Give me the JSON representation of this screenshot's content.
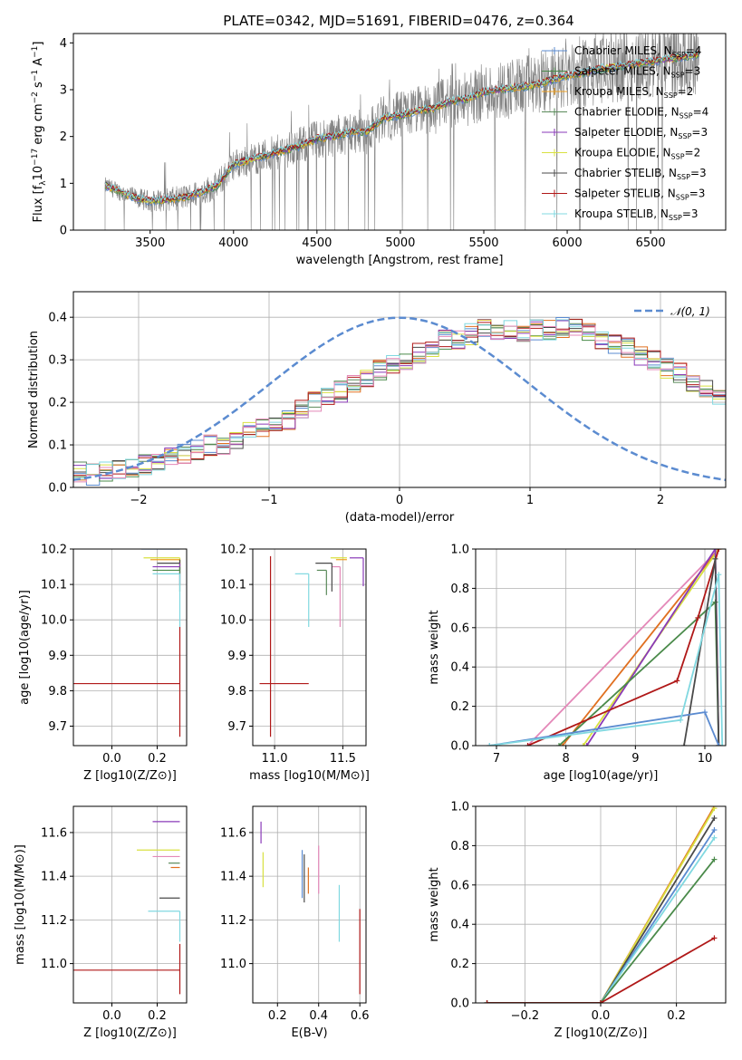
{
  "chart_data": [
    {
      "id": "spectrum",
      "type": "line",
      "title": "PLATE=0342, MJD=51691, FIBERID=0476, z=0.364",
      "xlabel": "wavelength [Angstrom, rest frame]",
      "ylabel": "Flux [f_λ 10^-17 erg cm^-2 s^-1 A^-1]",
      "xlim": [
        3040,
        6950
      ],
      "ylim": [
        0,
        4.2
      ],
      "xticks": [
        "3500",
        "4000",
        "4500",
        "5000",
        "5500",
        "6000",
        "6500"
      ],
      "yticks": [
        "0",
        "1",
        "2",
        "3",
        "4"
      ],
      "grid": false,
      "legend_position": "upper right",
      "data_color": "#808080",
      "series": [
        {
          "name": "Chabrier MILES, N_SSP=4",
          "color": "#5b8bd0"
        },
        {
          "name": "Salpeter MILES, N_SSP=3",
          "color": "#4a8a4a"
        },
        {
          "name": "Kroupa MILES, N_SSP=2",
          "color": "#f0a020"
        },
        {
          "name": "Chabrier ELODIE, N_SSP=4",
          "color": "#5a8a5a"
        },
        {
          "name": "Salpeter ELODIE, N_SSP=3",
          "color": "#8a3ab8"
        },
        {
          "name": "Kroupa ELODIE, N_SSP=2",
          "color": "#d8e040"
        },
        {
          "name": "Chabrier STELIB, N_SSP=3",
          "color": "#4a4a4a"
        },
        {
          "name": "Salpeter STELIB, N_SSP=3",
          "color": "#b01818"
        },
        {
          "name": "Kroupa STELIB, N_SSP=3",
          "color": "#80d8e0"
        }
      ],
      "model_points": {
        "x": [
          3230,
          3300,
          3400,
          3500,
          3600,
          3700,
          3800,
          3900,
          4000,
          4100,
          4200,
          4300,
          4400,
          4500,
          4600,
          4700,
          4800,
          4900,
          5000,
          5100,
          5200,
          5300,
          5400,
          5500,
          5600,
          5700,
          5800,
          5900,
          6000,
          6100,
          6200,
          6300,
          6400,
          6500,
          6600,
          6700,
          6790
        ],
        "y": [
          0.95,
          0.85,
          0.7,
          0.62,
          0.65,
          0.7,
          0.8,
          0.95,
          1.4,
          1.5,
          1.6,
          1.7,
          1.8,
          1.95,
          2.0,
          2.1,
          2.1,
          2.4,
          2.45,
          2.55,
          2.6,
          2.75,
          2.8,
          2.95,
          3.0,
          3.05,
          3.1,
          3.2,
          3.3,
          3.35,
          3.45,
          3.5,
          3.55,
          3.6,
          3.65,
          3.7,
          3.75
        ]
      }
    },
    {
      "id": "residuals",
      "type": "step",
      "xlabel": "(data-model)/error",
      "ylabel": "Normed distribution",
      "xlim": [
        -2.5,
        2.5
      ],
      "ylim": [
        0,
        0.46
      ],
      "xticks": [
        "−2",
        "−1",
        "0",
        "1",
        "2"
      ],
      "yticks": [
        "0.0",
        "0.1",
        "0.2",
        "0.3",
        "0.4"
      ],
      "grid": true,
      "legend": "𝒩(0, 1)",
      "legend_position": "upper right",
      "gaussian_color": "#5b8bd0",
      "bin_width": 0.1,
      "bin_start": -2.5,
      "base_histogram": [
        0.035,
        0.03,
        0.035,
        0.045,
        0.05,
        0.055,
        0.06,
        0.07,
        0.08,
        0.09,
        0.1,
        0.1,
        0.115,
        0.13,
        0.14,
        0.15,
        0.16,
        0.18,
        0.2,
        0.215,
        0.225,
        0.24,
        0.255,
        0.275,
        0.285,
        0.3,
        0.315,
        0.33,
        0.345,
        0.35,
        0.36,
        0.37,
        0.365,
        0.37,
        0.36,
        0.37,
        0.37,
        0.375,
        0.38,
        0.37,
        0.35,
        0.34,
        0.33,
        0.31,
        0.3,
        0.28,
        0.27,
        0.25,
        0.23,
        0.21,
        0.2,
        0.18,
        0.165,
        0.15,
        0.14,
        0.125,
        0.11,
        0.1,
        0.09,
        0.08,
        0.07,
        0.06,
        0.055,
        0.05,
        0.045,
        0.04,
        0.035,
        0.03,
        0.03,
        0.025
      ]
    },
    {
      "id": "age-vs-z",
      "type": "errorbar",
      "xlabel": "Z [log10(Z/Z⊙)]",
      "ylabel": "age  [log10(age/yr)]",
      "xlim": [
        -0.17,
        0.33
      ],
      "ylim": [
        9.645,
        10.2
      ],
      "xticks": [
        "0.0",
        "0.2"
      ],
      "yticks": [
        "9.7",
        "9.8",
        "9.9",
        "10.0",
        "10.1",
        "10.2"
      ],
      "grid": true,
      "points": [
        {
          "x": 0.3,
          "y": 10.2,
          "xerr": [
            0.17,
            0.0
          ],
          "yerr": [
            0.0,
            0.0
          ],
          "color": "#5b8bd0"
        },
        {
          "x": 0.3,
          "y": 10.175,
          "xerr": [
            0.16,
            0.0
          ],
          "yerr": [
            0.02,
            0.0
          ],
          "color": "#d8e040"
        },
        {
          "x": 0.3,
          "y": 10.17,
          "xerr": [
            0.13,
            0.0
          ],
          "yerr": [
            0.03,
            0.0
          ],
          "color": "#f0a020"
        },
        {
          "x": 0.3,
          "y": 10.16,
          "xerr": [
            0.1,
            0.0
          ],
          "yerr": [
            0.03,
            0.01
          ],
          "color": "#4a4a4a"
        },
        {
          "x": 0.3,
          "y": 10.15,
          "xerr": [
            0.12,
            0.0
          ],
          "yerr": [
            0.05,
            0.01
          ],
          "color": "#8a3ab8"
        },
        {
          "x": 0.3,
          "y": 10.14,
          "xerr": [
            0.12,
            0.0
          ],
          "yerr": [
            0.06,
            0.01
          ],
          "color": "#4a8a4a"
        },
        {
          "x": 0.3,
          "y": 10.13,
          "xerr": [
            0.12,
            0.0
          ],
          "yerr": [
            0.15,
            0.0
          ],
          "color": "#80d8e0"
        },
        {
          "x": 0.3,
          "y": 9.82,
          "xerr": [
            0.47,
            0.0
          ],
          "yerr": [
            0.15,
            0.16
          ],
          "color": "#b01818"
        }
      ]
    },
    {
      "id": "age-vs-mass",
      "type": "errorbar",
      "xlabel": "mass [log10(M/M⊙)]",
      "xlim": [
        10.84,
        11.67
      ],
      "ylim": [
        9.645,
        10.2
      ],
      "xticks": [
        "11.0",
        "11.5"
      ],
      "yticks": [
        "9.7",
        "9.8",
        "9.9",
        "10.0",
        "10.1",
        "10.2"
      ],
      "grid": true,
      "points": [
        {
          "x": 11.53,
          "y": 10.175,
          "xerr": [
            0.12,
            0.0
          ],
          "yerr": [
            0.0,
            0.0
          ],
          "color": "#d8e040"
        },
        {
          "x": 11.53,
          "y": 10.17,
          "xerr": [
            0.08,
            0.0
          ],
          "yerr": [
            0.0,
            0.0
          ],
          "color": "#f0a020"
        },
        {
          "x": 11.65,
          "y": 10.175,
          "xerr": [
            0.1,
            0.0
          ],
          "yerr": [
            0.08,
            0.0
          ],
          "color": "#8a3ab8"
        },
        {
          "x": 11.48,
          "y": 10.15,
          "xerr": [
            0.06,
            0.0
          ],
          "yerr": [
            0.17,
            0.0
          ],
          "color": "#e488b8"
        },
        {
          "x": 11.42,
          "y": 10.16,
          "xerr": [
            0.12,
            0.0
          ],
          "yerr": [
            0.08,
            0.0
          ],
          "color": "#4a4a4a"
        },
        {
          "x": 11.38,
          "y": 10.14,
          "xerr": [
            0.07,
            0.0
          ],
          "yerr": [
            0.07,
            0.0
          ],
          "color": "#5a8a5a"
        },
        {
          "x": 11.25,
          "y": 10.13,
          "xerr": [
            0.1,
            0.0
          ],
          "yerr": [
            0.15,
            0.0
          ],
          "color": "#80d8e0"
        },
        {
          "x": 10.97,
          "y": 9.82,
          "xerr": [
            0.08,
            0.28
          ],
          "yerr": [
            0.15,
            0.36
          ],
          "color": "#b01818"
        }
      ]
    },
    {
      "id": "weight-vs-age",
      "type": "line",
      "xlabel": "age  [log10(age/yr)]",
      "ylabel": "mass weight",
      "xlim": [
        6.7,
        10.3
      ],
      "ylim": [
        0,
        1
      ],
      "xticks": [
        "7",
        "8",
        "9",
        "10"
      ],
      "yticks": [
        "0.0",
        "0.2",
        "0.4",
        "0.6",
        "0.8",
        "1.0"
      ],
      "grid": true,
      "series": [
        {
          "color": "#e488b8",
          "x": [
            7.45,
            10.2
          ],
          "y": [
            0.0,
            1.0
          ]
        },
        {
          "color": "#e07020",
          "x": [
            7.95,
            10.2
          ],
          "y": [
            0.0,
            1.0
          ]
        },
        {
          "color": "#d8e040",
          "x": [
            8.25,
            10.2
          ],
          "y": [
            0.0,
            1.0
          ]
        },
        {
          "color": "#8a3ab8",
          "x": [
            8.3,
            10.15,
            10.2
          ],
          "y": [
            0.0,
            1.0,
            0.0
          ]
        },
        {
          "color": "#4a8a4a",
          "x": [
            7.9,
            10.15,
            10.2
          ],
          "y": [
            0.0,
            0.73,
            0.0
          ]
        },
        {
          "color": "#b01818",
          "x": [
            7.45,
            9.6,
            9.9,
            10.2
          ],
          "y": [
            0.0,
            0.33,
            0.65,
            1.0
          ]
        },
        {
          "color": "#4a4a4a",
          "x": [
            9.7,
            10.15,
            10.2
          ],
          "y": [
            0.0,
            0.95,
            0.0
          ]
        },
        {
          "color": "#5b8bd0",
          "x": [
            6.9,
            10.0,
            10.2
          ],
          "y": [
            0.0,
            0.17,
            0.0
          ]
        },
        {
          "color": "#80d8e0",
          "x": [
            6.9,
            9.65,
            10.2,
            10.25
          ],
          "y": [
            0.0,
            0.13,
            0.87,
            0.0
          ]
        }
      ]
    },
    {
      "id": "mass-vs-z",
      "type": "errorbar",
      "xlabel": "Z [log10(Z/Z⊙)]",
      "ylabel": "mass [log10(M/M⊙)]",
      "xlim": [
        -0.17,
        0.33
      ],
      "ylim": [
        10.82,
        11.72
      ],
      "xticks": [
        "0.0",
        "0.2"
      ],
      "yticks": [
        "11.0",
        "11.2",
        "11.4",
        "11.6"
      ],
      "grid": true,
      "points": [
        {
          "x": 0.3,
          "y": 11.65,
          "xerr": [
            0.12,
            0.0
          ],
          "yerr": [
            0.0,
            0.0
          ],
          "color": "#8a3ab8"
        },
        {
          "x": 0.3,
          "y": 11.52,
          "xerr": [
            0.19,
            0.0
          ],
          "yerr": [
            0.0,
            0.0
          ],
          "color": "#d8e040"
        },
        {
          "x": 0.3,
          "y": 11.49,
          "xerr": [
            0.12,
            0.0
          ],
          "yerr": [
            0.0,
            0.0
          ],
          "color": "#e488b8"
        },
        {
          "x": 0.3,
          "y": 11.46,
          "xerr": [
            0.05,
            0.0
          ],
          "yerr": [
            0.0,
            0.0
          ],
          "color": "#5a8a5a"
        },
        {
          "x": 0.3,
          "y": 11.44,
          "xerr": [
            0.04,
            0.0
          ],
          "yerr": [
            0.0,
            0.0
          ],
          "color": "#e07020"
        },
        {
          "x": 0.3,
          "y": 11.3,
          "xerr": [
            0.09,
            0.0
          ],
          "yerr": [
            0.0,
            0.0
          ],
          "color": "#4a4a4a"
        },
        {
          "x": 0.3,
          "y": 11.24,
          "xerr": [
            0.14,
            0.0
          ],
          "yerr": [
            0.14,
            0.0
          ],
          "color": "#80d8e0"
        },
        {
          "x": 0.3,
          "y": 10.97,
          "xerr": [
            0.47,
            0.0
          ],
          "yerr": [
            0.11,
            0.12
          ],
          "color": "#b01818"
        }
      ]
    },
    {
      "id": "mass-vs-ebv",
      "type": "errorbar",
      "xlabel": "E(B-V)",
      "xlim": [
        0.08,
        0.63
      ],
      "ylim": [
        10.82,
        11.72
      ],
      "xticks": [
        "0.2",
        "0.4",
        "0.6"
      ],
      "yticks": [
        "11.0",
        "11.2",
        "11.4",
        "11.6"
      ],
      "grid": true,
      "points": [
        {
          "x": 0.12,
          "y": 11.55,
          "xerr": [
            0.0,
            0.0
          ],
          "yerr": [
            0.0,
            0.1
          ],
          "color": "#8a3ab8"
        },
        {
          "x": 0.13,
          "y": 11.45,
          "xerr": [
            0.0,
            0.0
          ],
          "yerr": [
            0.1,
            0.06
          ],
          "color": "#d8e040"
        },
        {
          "x": 0.32,
          "y": 11.4,
          "xerr": [
            0.0,
            0.0
          ],
          "yerr": [
            0.1,
            0.12
          ],
          "color": "#5b8bd0"
        },
        {
          "x": 0.33,
          "y": 11.38,
          "xerr": [
            0.0,
            0.0
          ],
          "yerr": [
            0.1,
            0.12
          ],
          "color": "#4a4a4a"
        },
        {
          "x": 0.35,
          "y": 11.38,
          "xerr": [
            0.0,
            0.0
          ],
          "yerr": [
            0.06,
            0.06
          ],
          "color": "#e07020"
        },
        {
          "x": 0.4,
          "y": 11.4,
          "xerr": [
            0.0,
            0.0
          ],
          "yerr": [
            0.08,
            0.14
          ],
          "color": "#e488b8"
        },
        {
          "x": 0.5,
          "y": 11.25,
          "xerr": [
            0.0,
            0.0
          ],
          "yerr": [
            0.15,
            0.11
          ],
          "color": "#80d8e0"
        },
        {
          "x": 0.6,
          "y": 11.05,
          "xerr": [
            0.0,
            0.0
          ],
          "yerr": [
            0.19,
            0.2
          ],
          "color": "#b01818"
        }
      ]
    },
    {
      "id": "weight-vs-z",
      "type": "line",
      "xlabel": "Z [log10(Z/Z⊙)]",
      "ylabel": "mass weight",
      "xlim": [
        -0.33,
        0.33
      ],
      "ylim": [
        0,
        1
      ],
      "xticks": [
        "−0.2",
        "0.0",
        "0.2"
      ],
      "yticks": [
        "0.0",
        "0.2",
        "0.4",
        "0.6",
        "0.8",
        "1.0"
      ],
      "grid": true,
      "series": [
        {
          "color": "#e07020",
          "x": [
            -0.3,
            0.0,
            0.3
          ],
          "y": [
            0.0,
            0.0,
            1.0
          ]
        },
        {
          "color": "#d8e040",
          "x": [
            -0.3,
            0.0,
            0.3
          ],
          "y": [
            0.0,
            0.0,
            0.99
          ]
        },
        {
          "color": "#4a4a4a",
          "x": [
            -0.3,
            0.0,
            0.3
          ],
          "y": [
            0.0,
            0.0,
            0.94
          ]
        },
        {
          "color": "#5b8bd0",
          "x": [
            -0.3,
            0.0,
            0.3
          ],
          "y": [
            0.0,
            0.0,
            0.88
          ]
        },
        {
          "color": "#80d8e0",
          "x": [
            -0.3,
            0.0,
            0.3
          ],
          "y": [
            0.0,
            0.0,
            0.84
          ]
        },
        {
          "color": "#4a8a4a",
          "x": [
            -0.3,
            0.0,
            0.3
          ],
          "y": [
            0.0,
            0.0,
            0.73
          ]
        },
        {
          "color": "#b01818",
          "x": [
            -0.3,
            0.0,
            0.3
          ],
          "y": [
            0.0,
            0.0,
            0.33
          ]
        }
      ]
    }
  ]
}
